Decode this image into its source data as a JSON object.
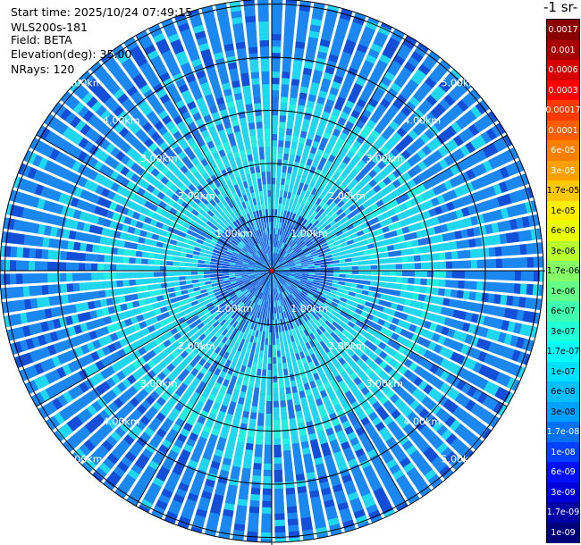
{
  "header": {
    "start_time": "Start time: 2025/10/24 07:49:15",
    "instrument": "WLS200s-181",
    "field": "Field: BETA",
    "elevation": "Elevation(deg): 35.00",
    "nrays": "NRays: 120"
  },
  "colorbar": {
    "title": "-1 sr-",
    "entries": [
      {
        "label": "0.0017",
        "color": "#8b0000",
        "text": "#ffffff"
      },
      {
        "label": "0.001",
        "color": "#a80000",
        "text": "#ffffff"
      },
      {
        "label": "0.0006",
        "color": "#d40000",
        "text": "#ffffff"
      },
      {
        "label": "0.0003",
        "color": "#ff0000",
        "text": "#ffffff"
      },
      {
        "label": "0.00017",
        "color": "#ff3a00",
        "text": "#ffffff"
      },
      {
        "label": "0.0001",
        "color": "#ff5e00",
        "text": "#ffffff"
      },
      {
        "label": "6e-05",
        "color": "#ff8000",
        "text": "#ffffff"
      },
      {
        "label": "3e-05",
        "color": "#ffa000",
        "text": "#ffffff"
      },
      {
        "label": "1.7e-05",
        "color": "#ffc800",
        "text": "#000000"
      },
      {
        "label": "1e-05",
        "color": "#ffee00",
        "text": "#000000"
      },
      {
        "label": "6e-06",
        "color": "#eaff00",
        "text": "#000000"
      },
      {
        "label": "3e-06",
        "color": "#b8ff2e",
        "text": "#000000"
      },
      {
        "label": "1.7e-06",
        "color": "#86ff66",
        "text": "#000000"
      },
      {
        "label": "1e-06",
        "color": "#66ff88",
        "text": "#000000"
      },
      {
        "label": "6e-07",
        "color": "#40ffb0",
        "text": "#000000"
      },
      {
        "label": "3e-07",
        "color": "#20ffd8",
        "text": "#000000"
      },
      {
        "label": "1.7e-07",
        "color": "#00ffff",
        "text": "#000000"
      },
      {
        "label": "1e-07",
        "color": "#00e0ff",
        "text": "#000000"
      },
      {
        "label": "6e-08",
        "color": "#00c0ff",
        "text": "#000000"
      },
      {
        "label": "3e-08",
        "color": "#00a0ff",
        "text": "#000000"
      },
      {
        "label": "1.7e-08",
        "color": "#0070ff",
        "text": "#ffffff"
      },
      {
        "label": "1e-08",
        "color": "#0040ff",
        "text": "#ffffff"
      },
      {
        "label": "6e-09",
        "color": "#0010ff",
        "text": "#ffffff"
      },
      {
        "label": "3e-09",
        "color": "#0000d8",
        "text": "#ffffff"
      },
      {
        "label": "1.7e-09",
        "color": "#0000a8",
        "text": "#ffffff"
      },
      {
        "label": "1e-09",
        "color": "#00007a",
        "text": "#ffffff"
      }
    ]
  },
  "ppi": {
    "rays": 120,
    "range_rings_km": [
      1,
      2,
      3,
      4,
      5
    ],
    "ring_labels": [
      "1.00km",
      "2.00km",
      "3.00km",
      "4.00km",
      "5.00km"
    ],
    "colors": {
      "near": "#1f74e8",
      "mid": "#1fd8f0",
      "far": "#1a88f0",
      "dark": "#124ed8",
      "cyan": "#22f0e0",
      "grid": "#000000",
      "label": "#ffffff",
      "center": "#cc0000"
    }
  }
}
